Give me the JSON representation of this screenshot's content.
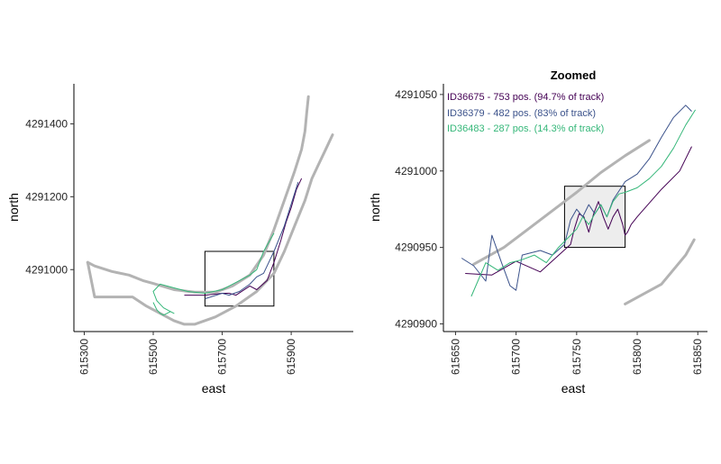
{
  "colors": {
    "purple": "#440154",
    "blue": "#3b528b",
    "green": "#35b779",
    "river": "#b3b3b3",
    "bbox": "#000000",
    "bbox_fill": "#e6e6e6"
  },
  "chart_data": [
    {
      "type": "line",
      "title": "",
      "xlabel": "east",
      "ylabel": "north",
      "xlim": [
        615270,
        616080
      ],
      "ylim": [
        4290830,
        4291510
      ],
      "xticks": [
        615300,
        615500,
        615700,
        615900
      ],
      "xtick_labels": [
        "615300",
        "615500",
        "615700",
        "615900"
      ],
      "yticks": [
        4291000,
        4291200,
        4291400
      ],
      "ytick_labels": [
        "4291000",
        "4291200",
        "4291400"
      ],
      "grid": false,
      "river_banks": [
        {
          "x": [
            615310,
            615330,
            615380,
            615430,
            615470,
            615500,
            615560,
            615620,
            615680,
            615730,
            615780,
            615820,
            615850,
            615880,
            615910,
            615930,
            615940,
            615945,
            615950
          ],
          "y": [
            4291020,
            4291010,
            4290995,
            4290985,
            4290970,
            4290962,
            4290945,
            4290938,
            4290938,
            4290955,
            4290985,
            4291040,
            4291110,
            4291190,
            4291270,
            4291330,
            4291380,
            4291430,
            4291475
          ]
        },
        {
          "x": [
            615310,
            615330,
            615380,
            615440,
            615480,
            615520,
            615560,
            615590,
            615620,
            615680,
            615740,
            615800,
            615850,
            615880,
            615910,
            615940,
            615960,
            615980,
            616000,
            616020
          ],
          "y": [
            4291020,
            4290925,
            4290925,
            4290925,
            4290900,
            4290880,
            4290860,
            4290850,
            4290850,
            4290870,
            4290900,
            4290940,
            4290990,
            4291050,
            4291120,
            4291190,
            4291250,
            4291290,
            4291330,
            4291370
          ]
        }
      ],
      "series": [
        {
          "name": "ID36675",
          "x": [
            615590,
            615650,
            615700,
            615720,
            615740,
            615780,
            615800,
            615830,
            615850,
            615870,
            615885,
            615900,
            615915,
            615930
          ],
          "y": [
            4290930,
            4290930,
            4290935,
            4290935,
            4290930,
            4290955,
            4290945,
            4290970,
            4291020,
            4291080,
            4291130,
            4291170,
            4291220,
            4291250
          ]
        },
        {
          "name": "ID36379",
          "x": [
            615650,
            615700,
            615720,
            615735,
            615750,
            615780,
            615800,
            615820,
            615850,
            615880,
            615900,
            615920
          ],
          "y": [
            4290920,
            4290935,
            4290930,
            4290935,
            4290940,
            4290960,
            4290980,
            4290990,
            4291050,
            4291120,
            4291180,
            4291240
          ]
        },
        {
          "name": "ID36483",
          "x": [
            615500,
            615510,
            615520,
            615530,
            615540,
            615550,
            615560,
            615530,
            615520,
            615510,
            615500,
            615520,
            615560,
            615600,
            615650,
            615700,
            615720,
            615740,
            615760,
            615780,
            615800,
            615820,
            615850
          ],
          "y": [
            4290910,
            4290890,
            4290880,
            4290875,
            4290880,
            4290885,
            4290880,
            4290895,
            4290905,
            4290915,
            4290940,
            4290960,
            4290950,
            4290940,
            4290935,
            4290945,
            4290955,
            4290965,
            4290975,
            4290985,
            4291000,
            4291050,
            4291100
          ]
        }
      ],
      "zoom_box": {
        "x": [
          615650,
          615850
        ],
        "y": [
          4290900,
          4291050
        ]
      }
    },
    {
      "type": "line",
      "title": "Zoomed",
      "xlabel": "east",
      "ylabel": "north",
      "xlim": [
        615640,
        615858
      ],
      "ylim": [
        4290895,
        4291057
      ],
      "xticks": [
        615650,
        615700,
        615750,
        615800,
        615850
      ],
      "xtick_labels": [
        "615650",
        "615700",
        "615750",
        "615800",
        "615850"
      ],
      "yticks": [
        4290900,
        4290950,
        4291000,
        4291050
      ],
      "ytick_labels": [
        "4290900",
        "4290950",
        "4291000",
        "4291050"
      ],
      "grid": false,
      "legend": [
        {
          "label": "ID36675 - 753 pos. (94.7% of track)"
        },
        {
          "label": "ID36379 - 482 pos. (83% of track)"
        },
        {
          "label": "ID36483 - 287 pos. (14.3% of track)"
        }
      ],
      "river_banks": [
        {
          "x": [
            615665,
            615690,
            615720,
            615750,
            615770,
            615790,
            615810
          ],
          "y": [
            4290939,
            4290950,
            4290968,
            4290986,
            4290999,
            4291010,
            4291020
          ]
        },
        {
          "x": [
            615790,
            615820,
            615840,
            615847
          ],
          "y": [
            4290913,
            4290926,
            4290945,
            4290955
          ]
        }
      ],
      "zoom_box": {
        "x": [
          615740,
          615790
        ],
        "y": [
          4290950,
          4290990
        ]
      },
      "series": [
        {
          "name": "ID36675",
          "x": [
            615658,
            615680,
            615700,
            615720,
            615745,
            615748,
            615752,
            615756,
            615760,
            615764,
            615768,
            615772,
            615776,
            615780,
            615784,
            615788,
            615790,
            615792,
            615795,
            615800,
            615820,
            615835,
            615845
          ],
          "y": [
            4290933,
            4290932,
            4290941,
            4290934,
            4290952,
            4290962,
            4290972,
            4290970,
            4290960,
            4290972,
            4290980,
            4290970,
            4290962,
            4290970,
            4290975,
            4290965,
            4290958,
            4290960,
            4290965,
            4290970,
            4290988,
            4291000,
            4291016
          ]
        },
        {
          "name": "ID36379",
          "x": [
            615655,
            615665,
            615675,
            615680,
            615688,
            615695,
            615700,
            615705,
            615710,
            615720,
            615730,
            615740,
            615745,
            615750,
            615755,
            615760,
            615765,
            615770,
            615775,
            615780,
            615790,
            615800,
            615810,
            615820,
            615830,
            615840,
            615845
          ],
          "y": [
            4290943,
            4290938,
            4290928,
            4290958,
            4290940,
            4290925,
            4290922,
            4290945,
            4290946,
            4290948,
            4290945,
            4290952,
            4290968,
            4290975,
            4290970,
            4290978,
            4290972,
            4290978,
            4290970,
            4290981,
            4290993,
            4290998,
            4291008,
            4291022,
            4291035,
            4291043,
            4291039
          ]
        },
        {
          "name": "ID36483",
          "x": [
            615663,
            615675,
            615685,
            615695,
            615705,
            615715,
            615725,
            615735,
            615745,
            615750,
            615755,
            615760,
            615765,
            615770,
            615775,
            615780,
            615785,
            615790,
            615800,
            615810,
            615820,
            615830,
            615840,
            615848
          ],
          "y": [
            4290918,
            4290940,
            4290935,
            4290940,
            4290942,
            4290945,
            4290940,
            4290950,
            4290958,
            4290962,
            4290970,
            4290965,
            4290972,
            4290978,
            4290970,
            4290980,
            4290985,
            4290986,
            4290989,
            4290995,
            4291003,
            4291015,
            4291030,
            4291040
          ]
        }
      ]
    }
  ]
}
